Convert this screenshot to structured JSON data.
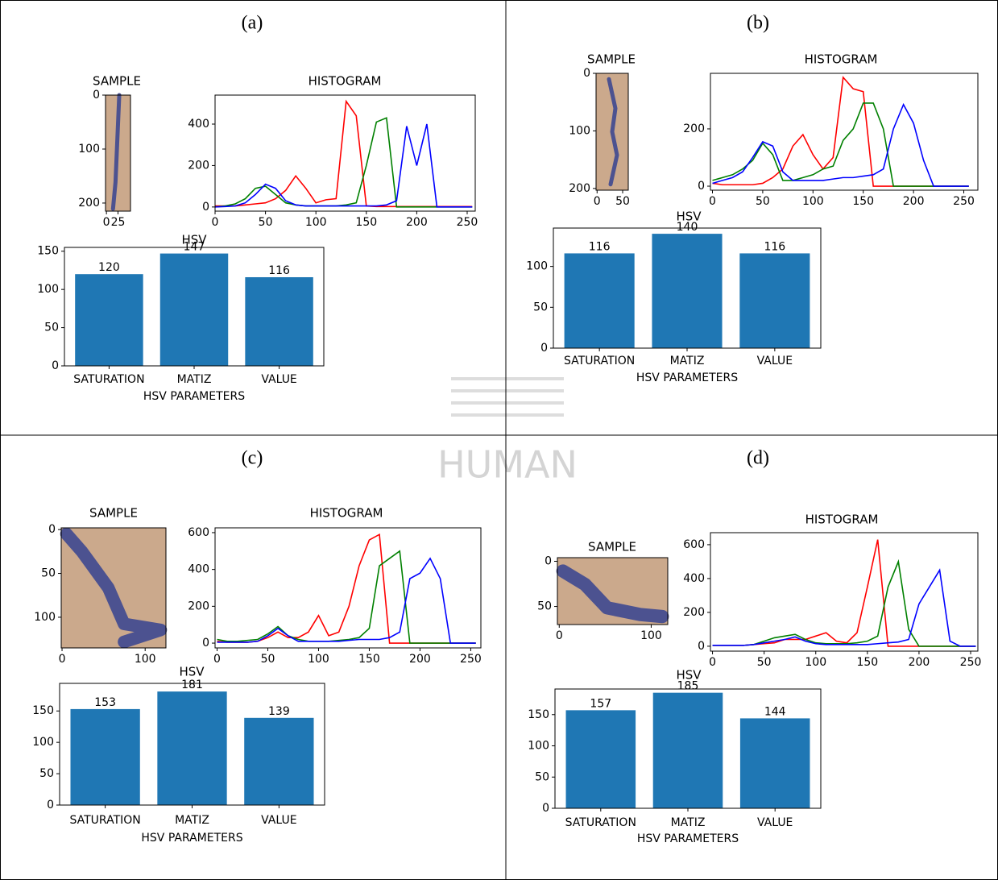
{
  "watermark": "HUMAN",
  "panels": [
    {
      "label": "(a)",
      "sample": {
        "type": "image",
        "title": "SAMPLE",
        "xlim": [
          -2,
          52
        ],
        "ylim": [
          215,
          0
        ],
        "xticks": [
          0,
          25
        ],
        "yticks": [
          0,
          100,
          200
        ]
      },
      "histogram": {
        "type": "line",
        "title": "HISTOGRAM",
        "xlim": [
          0,
          258
        ],
        "ylim": [
          -20,
          540
        ],
        "xticks": [
          0,
          50,
          100,
          150,
          200,
          250
        ],
        "yticks": [
          0,
          200,
          400
        ],
        "x": [
          0,
          10,
          20,
          30,
          40,
          50,
          60,
          70,
          80,
          90,
          100,
          110,
          120,
          130,
          140,
          150,
          160,
          170,
          180,
          190,
          200,
          210,
          220,
          230,
          240,
          250,
          255
        ],
        "series": [
          {
            "color": "#ff0000",
            "values": [
              5,
              5,
              5,
              10,
              15,
              20,
              40,
              80,
              150,
              90,
              20,
              35,
              40,
              510,
              440,
              5,
              2,
              2,
              2,
              2,
              2,
              2,
              2,
              2,
              2,
              2,
              2
            ]
          },
          {
            "color": "#008000",
            "values": [
              0,
              5,
              15,
              40,
              90,
              100,
              60,
              20,
              10,
              5,
              5,
              5,
              5,
              10,
              20,
              200,
              410,
              430,
              0,
              0,
              0,
              0,
              0,
              0,
              0,
              0,
              0
            ]
          },
          {
            "color": "#0000ff",
            "values": [
              0,
              2,
              5,
              20,
              60,
              110,
              90,
              30,
              10,
              5,
              5,
              5,
              5,
              5,
              5,
              5,
              5,
              10,
              30,
              390,
              200,
              400,
              0,
              0,
              0,
              0,
              0
            ]
          }
        ]
      },
      "hsv": {
        "type": "bar",
        "title": "HSV",
        "x_label": "HSV PARAMETERS",
        "color": "#1f77b4",
        "categories": [
          "SATURATION",
          "MATIZ",
          "VALUE"
        ],
        "values": [
          120,
          147,
          116
        ],
        "ylim": [
          0,
          155
        ],
        "yticks": [
          0,
          50,
          100,
          150
        ]
      }
    },
    {
      "label": "(b)",
      "sample": {
        "type": "image",
        "title": "SAMPLE",
        "xlim": [
          -2,
          61
        ],
        "ylim": [
          203,
          0
        ],
        "xticks": [
          0,
          50
        ],
        "yticks": [
          0,
          100,
          200
        ]
      },
      "histogram": {
        "type": "line",
        "title": "HISTOGRAM",
        "xlim": [
          -2,
          264
        ],
        "ylim": [
          -14,
          394
        ],
        "xticks": [
          0,
          50,
          100,
          150,
          200,
          250
        ],
        "yticks": [
          0,
          200
        ],
        "x": [
          0,
          10,
          20,
          30,
          40,
          50,
          60,
          70,
          80,
          90,
          100,
          110,
          120,
          130,
          140,
          150,
          160,
          170,
          180,
          190,
          200,
          210,
          220,
          230,
          240,
          250,
          255
        ],
        "series": [
          {
            "color": "#ff0000",
            "values": [
              10,
              5,
              5,
              5,
              5,
              10,
              30,
              60,
              140,
              180,
              110,
              60,
              100,
              380,
              340,
              330,
              0,
              0,
              0,
              0,
              0,
              0,
              0,
              0,
              0,
              0,
              0
            ]
          },
          {
            "color": "#008000",
            "values": [
              20,
              30,
              40,
              60,
              90,
              150,
              110,
              20,
              20,
              30,
              40,
              60,
              70,
              160,
              200,
              290,
              290,
              200,
              0,
              0,
              0,
              0,
              0,
              0,
              0,
              0,
              0
            ]
          },
          {
            "color": "#0000ff",
            "values": [
              10,
              20,
              30,
              50,
              100,
              155,
              140,
              50,
              20,
              20,
              20,
              20,
              25,
              30,
              30,
              35,
              40,
              60,
              200,
              285,
              220,
              90,
              0,
              0,
              0,
              0,
              0
            ]
          }
        ]
      },
      "hsv": {
        "type": "bar",
        "title": "HSV",
        "x_label": "HSV PARAMETERS",
        "color": "#1f77b4",
        "categories": [
          "SATURATION",
          "MATIZ",
          "VALUE"
        ],
        "values": [
          116,
          140,
          116
        ],
        "ylim": [
          0,
          147
        ],
        "yticks": [
          0,
          50,
          100
        ]
      }
    },
    {
      "label": "(c)",
      "sample": {
        "type": "image",
        "title": "SAMPLE",
        "xlim": [
          -1,
          125
        ],
        "ylim": [
          135,
          -2
        ],
        "xticks": [
          0,
          100
        ],
        "yticks": [
          0,
          50,
          100
        ]
      },
      "histogram": {
        "type": "line",
        "title": "HISTOGRAM",
        "xlim": [
          -2,
          260
        ],
        "ylim": [
          -26,
          626
        ],
        "xticks": [
          0,
          50,
          100,
          150,
          200,
          250
        ],
        "yticks": [
          0,
          200,
          400,
          600
        ],
        "x": [
          0,
          10,
          20,
          30,
          40,
          50,
          60,
          70,
          80,
          90,
          100,
          110,
          120,
          130,
          140,
          150,
          160,
          170,
          180,
          190,
          200,
          210,
          220,
          230,
          240,
          250,
          255
        ],
        "series": [
          {
            "color": "#ff0000",
            "values": [
              10,
              5,
              5,
              5,
              10,
              30,
              60,
              30,
              30,
              60,
              150,
              40,
              60,
              200,
              420,
              560,
              590,
              0,
              0,
              0,
              0,
              0,
              0,
              0,
              0,
              0,
              0
            ]
          },
          {
            "color": "#008000",
            "values": [
              20,
              10,
              10,
              15,
              20,
              50,
              90,
              40,
              20,
              10,
              10,
              10,
              15,
              20,
              30,
              80,
              420,
              460,
              500,
              0,
              0,
              0,
              0,
              0,
              0,
              0,
              0
            ]
          },
          {
            "color": "#0000ff",
            "values": [
              5,
              5,
              5,
              5,
              10,
              40,
              80,
              40,
              10,
              10,
              10,
              10,
              10,
              15,
              20,
              20,
              20,
              30,
              60,
              350,
              380,
              460,
              350,
              0,
              0,
              0,
              0
            ]
          }
        ]
      },
      "hsv": {
        "type": "bar",
        "title": "HSV",
        "x_label": "HSV PARAMETERS",
        "color": "#1f77b4",
        "categories": [
          "SATURATION",
          "MATIZ",
          "VALUE"
        ],
        "values": [
          153,
          181,
          139
        ],
        "ylim": [
          0,
          194
        ],
        "yticks": [
          0,
          50,
          100,
          150
        ]
      }
    },
    {
      "label": "(d)",
      "sample": {
        "type": "image",
        "title": "SAMPLE",
        "xlim": [
          -2,
          118
        ],
        "ylim": [
          70,
          -4
        ],
        "xticks": [
          0,
          100
        ],
        "yticks": [
          0,
          50
        ]
      },
      "histogram": {
        "type": "line",
        "title": "HISTOGRAM",
        "xlim": [
          -2,
          257
        ],
        "ylim": [
          -29,
          671
        ],
        "xticks": [
          0,
          50,
          100,
          150,
          200,
          250
        ],
        "yticks": [
          0,
          200,
          400,
          600
        ],
        "x": [
          0,
          10,
          20,
          30,
          40,
          50,
          60,
          70,
          80,
          90,
          100,
          110,
          120,
          130,
          140,
          150,
          160,
          170,
          180,
          190,
          200,
          210,
          220,
          230,
          240,
          250,
          255
        ],
        "series": [
          {
            "color": "#ff0000",
            "values": [
              5,
              5,
              5,
              5,
              10,
              15,
              20,
              40,
              40,
              40,
              60,
              80,
              30,
              20,
              80,
              350,
              630,
              0,
              0,
              0,
              0,
              0,
              0,
              0,
              0,
              0,
              0
            ]
          },
          {
            "color": "#008000",
            "values": [
              5,
              5,
              5,
              5,
              10,
              30,
              50,
              60,
              70,
              40,
              20,
              15,
              15,
              15,
              20,
              30,
              60,
              350,
              500,
              100,
              0,
              0,
              0,
              0,
              0,
              0,
              0
            ]
          },
          {
            "color": "#0000ff",
            "values": [
              5,
              5,
              5,
              5,
              10,
              20,
              30,
              40,
              55,
              30,
              15,
              10,
              10,
              10,
              10,
              10,
              15,
              20,
              25,
              40,
              250,
              350,
              450,
              30,
              0,
              0,
              0
            ]
          }
        ]
      },
      "hsv": {
        "type": "bar",
        "title": "HSV",
        "x_label": "HSV PARAMETERS",
        "color": "#1f77b4",
        "categories": [
          "SATURATION",
          "MATIZ",
          "VALUE"
        ],
        "values": [
          157,
          185,
          144
        ],
        "ylim": [
          0,
          191
        ],
        "yticks": [
          0,
          50,
          100,
          150
        ]
      }
    }
  ]
}
